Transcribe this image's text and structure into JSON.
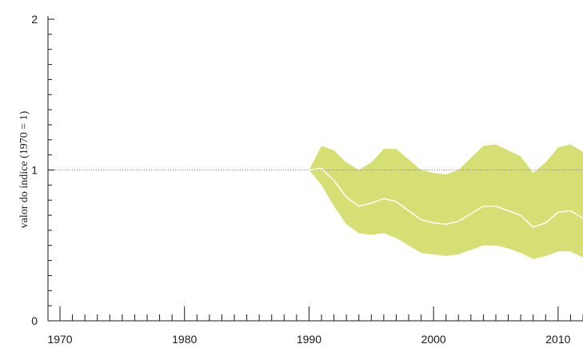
{
  "chart_data": {
    "type": "area",
    "ylabel": "valor do índice (1970 = 1)",
    "xlabel": "",
    "title": "",
    "xlim": [
      1970,
      2012
    ],
    "ylim": [
      0,
      2
    ],
    "x_ticks": [
      1970,
      1980,
      1990,
      2000,
      2010
    ],
    "y_ticks": [
      0,
      1,
      2
    ],
    "reference_line": {
      "y": 1,
      "style": "dotted"
    },
    "x": [
      1990,
      1991,
      1992,
      1993,
      1994,
      1995,
      1996,
      1997,
      1998,
      1999,
      2000,
      2001,
      2002,
      2003,
      2004,
      2005,
      2006,
      2007,
      2008,
      2009,
      2010,
      2011,
      2012
    ],
    "series": [
      {
        "role": "index",
        "values": [
          1.0,
          1.01,
          0.93,
          0.82,
          0.76,
          0.78,
          0.81,
          0.79,
          0.73,
          0.67,
          0.65,
          0.64,
          0.66,
          0.71,
          0.76,
          0.76,
          0.73,
          0.7,
          0.62,
          0.65,
          0.72,
          0.73,
          0.68
        ]
      },
      {
        "role": "upper_bound",
        "values": [
          1.0,
          1.16,
          1.13,
          1.05,
          1.0,
          1.05,
          1.14,
          1.14,
          1.07,
          1.0,
          0.98,
          0.97,
          1.0,
          1.08,
          1.16,
          1.17,
          1.13,
          1.09,
          0.98,
          1.05,
          1.15,
          1.17,
          1.12
        ]
      },
      {
        "role": "lower_bound",
        "values": [
          1.0,
          0.9,
          0.76,
          0.64,
          0.58,
          0.57,
          0.58,
          0.55,
          0.5,
          0.45,
          0.44,
          0.43,
          0.44,
          0.47,
          0.5,
          0.5,
          0.48,
          0.45,
          0.41,
          0.43,
          0.46,
          0.46,
          0.42
        ]
      }
    ],
    "colors": {
      "band": "#d5df74",
      "line": "#ffffff",
      "axis": "#1a1a1a",
      "reference": "#777777"
    }
  }
}
